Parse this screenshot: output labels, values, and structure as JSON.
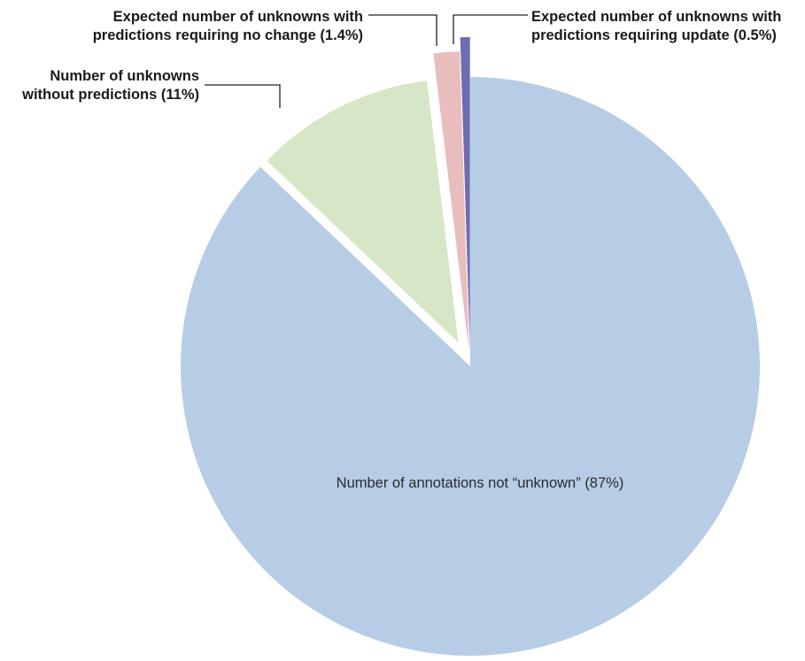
{
  "chart_data": {
    "type": "pie",
    "title": "",
    "start": "12 o'clock",
    "direction": "clockwise",
    "slices": [
      {
        "label_lines": [
          "Number of annotations not “unknown” (87%)"
        ],
        "value": 87.1,
        "color": "#b7cde6",
        "exploded": false,
        "label_position": "inside"
      },
      {
        "label_lines": [
          "Number of unknowns",
          "without predictions (11%)"
        ],
        "value": 11,
        "color": "#d7e6c6",
        "exploded": true,
        "label_position": "outside-left"
      },
      {
        "label_lines": [
          "Expected number of unknowns with",
          "predictions requiring no change (1.4%)"
        ],
        "value": 1.4,
        "color": "#e9bcbd",
        "exploded": true,
        "label_position": "outside-top"
      },
      {
        "label_lines": [
          "Expected number of unknowns with",
          "predictions requiring update (0.5%)"
        ],
        "value": 0.5,
        "color": "#6d6cb0",
        "exploded": true,
        "label_position": "outside-top-right"
      }
    ]
  }
}
